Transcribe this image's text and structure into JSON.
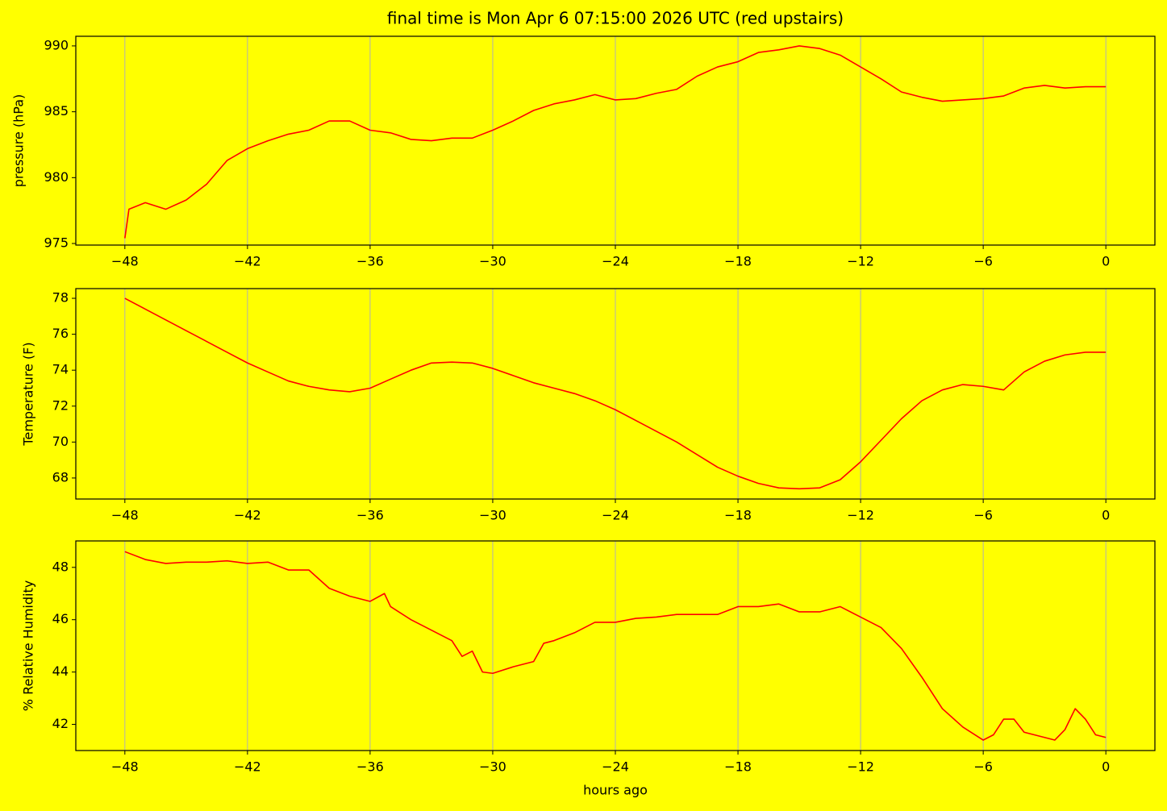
{
  "chart_data": [
    {
      "type": "line",
      "title": "final time is Mon Apr  6 07:15:00 2026  UTC  (red upstairs)",
      "ylabel": "pressure (hPa)",
      "color": "#ff0000",
      "grid": "x",
      "xlim": [
        -50.4,
        2.4
      ],
      "ylim": [
        974.88,
        990.73
      ],
      "xticks": [
        {
          "value": -48,
          "label": "−48"
        },
        {
          "value": -42,
          "label": "−42"
        },
        {
          "value": -36,
          "label": "−36"
        },
        {
          "value": -30,
          "label": "−30"
        },
        {
          "value": -24,
          "label": "−24"
        },
        {
          "value": -18,
          "label": "−18"
        },
        {
          "value": -12,
          "label": "−12"
        },
        {
          "value": -6,
          "label": "−6"
        },
        0
      ],
      "yticks": [
        975,
        980,
        985,
        990
      ],
      "x": [
        -48,
        -47.8,
        -47,
        -46,
        -45,
        -44,
        -43,
        -42,
        -41,
        -40,
        -39,
        -38,
        -37,
        -36,
        -35,
        -34,
        -33,
        -32,
        -31,
        -30,
        -29,
        -28,
        -27,
        -26,
        -25,
        -24,
        -23,
        -22,
        -21,
        -20,
        -19,
        -18,
        -17,
        -16,
        -15,
        -14,
        -13,
        -12,
        -11,
        -10,
        -9,
        -8,
        -7,
        -6,
        -5,
        -4,
        -3,
        -2,
        -1,
        0
      ],
      "values": [
        975.4,
        977.6,
        978.1,
        977.6,
        978.3,
        979.5,
        981.3,
        982.2,
        982.8,
        983.3,
        983.6,
        984.3,
        984.3,
        983.6,
        983.4,
        982.9,
        982.8,
        983.0,
        983.0,
        983.6,
        984.3,
        985.1,
        985.6,
        985.9,
        986.3,
        985.9,
        986.0,
        986.4,
        986.7,
        987.7,
        988.4,
        988.8,
        989.5,
        989.7,
        990.0,
        989.8,
        989.3,
        988.4,
        987.5,
        986.5,
        986.1,
        985.8,
        985.9,
        986.0,
        986.2,
        986.8,
        987.0,
        986.8,
        986.9,
        986.9
      ]
    },
    {
      "type": "line",
      "ylabel": "Temperature (F)",
      "color": "#ff0000",
      "grid": "x",
      "xlim": [
        -50.4,
        2.4
      ],
      "ylim": [
        66.83,
        78.54
      ],
      "xticks": [
        {
          "value": -48,
          "label": "−48"
        },
        {
          "value": -42,
          "label": "−42"
        },
        {
          "value": -36,
          "label": "−36"
        },
        {
          "value": -30,
          "label": "−30"
        },
        {
          "value": -24,
          "label": "−24"
        },
        {
          "value": -18,
          "label": "−18"
        },
        {
          "value": -12,
          "label": "−12"
        },
        {
          "value": -6,
          "label": "−6"
        },
        0
      ],
      "yticks": [
        68,
        70,
        72,
        74,
        76,
        78
      ],
      "x": [
        -48,
        -47,
        -46,
        -45,
        -44,
        -43,
        -42,
        -41,
        -40,
        -39,
        -38,
        -37,
        -36,
        -35,
        -34,
        -33,
        -32,
        -31,
        -30,
        -29,
        -28,
        -27,
        -26,
        -25,
        -24,
        -23,
        -22,
        -21,
        -20,
        -19,
        -18,
        -17,
        -16,
        -15,
        -14,
        -13,
        -12,
        -11,
        -10,
        -9,
        -8,
        -7,
        -6,
        -5,
        -4,
        -3,
        -2,
        -1,
        0
      ],
      "values": [
        78.0,
        77.4,
        76.8,
        76.2,
        75.6,
        75.0,
        74.4,
        73.9,
        73.4,
        73.1,
        72.9,
        72.8,
        73.0,
        73.5,
        74.0,
        74.4,
        74.45,
        74.4,
        74.1,
        73.7,
        73.3,
        73.0,
        72.7,
        72.3,
        71.8,
        71.2,
        70.6,
        70.0,
        69.3,
        68.6,
        68.1,
        67.7,
        67.45,
        67.4,
        67.45,
        67.9,
        68.9,
        70.1,
        71.3,
        72.3,
        72.9,
        73.2,
        73.1,
        72.9,
        73.9,
        74.5,
        74.85,
        75.0,
        75.0
      ]
    },
    {
      "type": "line",
      "ylabel": "% Relative Humidity",
      "xlabel": "hours ago",
      "color": "#ff0000",
      "grid": "x",
      "xlim": [
        -50.4,
        2.4
      ],
      "ylim": [
        41.0,
        49.01
      ],
      "xticks": [
        {
          "value": -48,
          "label": "−48"
        },
        {
          "value": -42,
          "label": "−42"
        },
        {
          "value": -36,
          "label": "−36"
        },
        {
          "value": -30,
          "label": "−30"
        },
        {
          "value": -24,
          "label": "−24"
        },
        {
          "value": -18,
          "label": "−18"
        },
        {
          "value": -12,
          "label": "−12"
        },
        {
          "value": -6,
          "label": "−6"
        },
        0
      ],
      "yticks": [
        42,
        44,
        46,
        48
      ],
      "x": [
        -48,
        -47,
        -46,
        -45,
        -44,
        -43,
        -42,
        -41,
        -40,
        -39,
        -38,
        -37,
        -36,
        -35.3,
        -35,
        -34,
        -33,
        -32,
        -31.5,
        -31,
        -30.5,
        -30,
        -29,
        -28,
        -27.5,
        -27,
        -26,
        -25,
        -24,
        -23,
        -22,
        -21,
        -20,
        -19,
        -18,
        -17,
        -16,
        -15,
        -14,
        -13,
        -12,
        -11,
        -10,
        -9,
        -8,
        -7,
        -6,
        -5.5,
        -5,
        -4.5,
        -4,
        -3,
        -2.5,
        -2,
        -1.5,
        -1,
        -0.5,
        0
      ],
      "values": [
        48.6,
        48.3,
        48.15,
        48.2,
        48.2,
        48.25,
        48.15,
        48.2,
        47.9,
        47.9,
        47.2,
        46.9,
        46.7,
        47.0,
        46.5,
        46.0,
        45.6,
        45.2,
        44.6,
        44.8,
        44.0,
        43.95,
        44.2,
        44.4,
        45.1,
        45.2,
        45.5,
        45.9,
        45.9,
        46.05,
        46.1,
        46.2,
        46.2,
        46.2,
        46.5,
        46.5,
        46.6,
        46.3,
        46.3,
        46.5,
        46.1,
        45.7,
        44.9,
        43.8,
        42.6,
        41.9,
        41.4,
        41.6,
        42.2,
        42.2,
        41.7,
        41.5,
        41.4,
        41.8,
        42.6,
        42.2,
        41.6,
        41.5
      ]
    }
  ]
}
